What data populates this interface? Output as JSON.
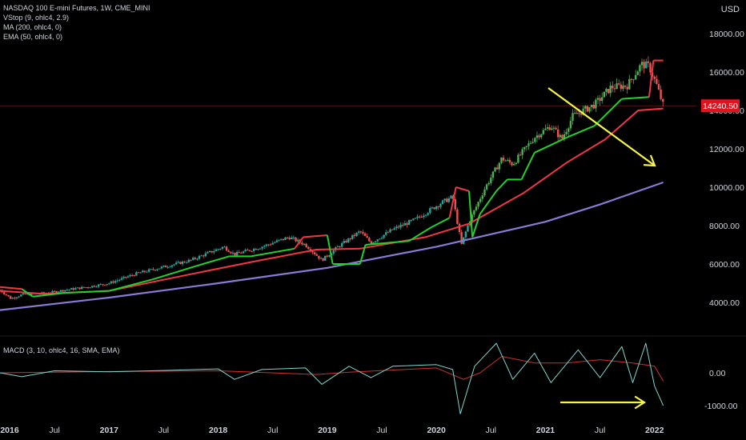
{
  "header": {
    "symbol": "NASDAQ 100 E-mini Futures, 1W, CME_MINI",
    "indicators": [
      "VStop (9, ohlc4, 2.9)",
      "MA (200, ohlc4, 0)",
      "EMA (50, ohlc4, 0)"
    ],
    "currency": "USD"
  },
  "macd_label": "MACD (3, 10, ohlc4, 16, SMA, EMA)",
  "colors": {
    "background": "#000000",
    "candle_up": "#26a69a",
    "candle_bright_up": "#4caf50",
    "candle_down": "#ef5350",
    "vstop": "#f23645",
    "vstop_green": "#22d12b",
    "ema50": "#f23645",
    "ma200": "#8a7ad6",
    "macd": "#7fd6d0",
    "signal": "#d03030",
    "arrow": "#f5f542",
    "price_badge": "#e0141e"
  },
  "chart_data": {
    "type": "candlestick",
    "x_ticks": [
      "2016",
      "Jul",
      "2017",
      "Jul",
      "2018",
      "Jul",
      "2019",
      "Jul",
      "2020",
      "Jul",
      "2021",
      "Jul",
      "2022"
    ],
    "y_ticks": [
      "4000.00",
      "6000.00",
      "8000.00",
      "10000.00",
      "12000.00",
      "14000.00",
      "16000.00",
      "18000.00"
    ],
    "last_price": "14240.50",
    "ylim": [
      3000,
      18000
    ],
    "macd_ticks": [
      "0.00",
      "-1000.00"
    ],
    "price_path": [
      [
        2016.0,
        4650
      ],
      [
        2016.1,
        4200
      ],
      [
        2016.2,
        4400
      ],
      [
        2016.45,
        4500
      ],
      [
        2016.6,
        4650
      ],
      [
        2016.8,
        4800
      ],
      [
        2017.0,
        5000
      ],
      [
        2017.25,
        5500
      ],
      [
        2017.5,
        5850
      ],
      [
        2017.75,
        6200
      ],
      [
        2018.05,
        6900
      ],
      [
        2018.15,
        6500
      ],
      [
        2018.4,
        6900
      ],
      [
        2018.65,
        7400
      ],
      [
        2018.8,
        7000
      ],
      [
        2018.95,
        6200
      ],
      [
        2019.1,
        6900
      ],
      [
        2019.3,
        7700
      ],
      [
        2019.4,
        7100
      ],
      [
        2019.6,
        7800
      ],
      [
        2019.8,
        8300
      ],
      [
        2020.05,
        9200
      ],
      [
        2020.15,
        9500
      ],
      [
        2020.23,
        7000
      ],
      [
        2020.3,
        8200
      ],
      [
        2020.45,
        10000
      ],
      [
        2020.6,
        11500
      ],
      [
        2020.7,
        11200
      ],
      [
        2020.9,
        12600
      ],
      [
        2021.05,
        13200
      ],
      [
        2021.15,
        12500
      ],
      [
        2021.25,
        13700
      ],
      [
        2021.45,
        14300
      ],
      [
        2021.6,
        15200
      ],
      [
        2021.75,
        15300
      ],
      [
        2021.88,
        16400
      ],
      [
        2021.95,
        16300
      ],
      [
        2022.02,
        15300
      ],
      [
        2022.08,
        14240
      ]
    ],
    "ma200_path": [
      [
        2016.0,
        3600
      ],
      [
        2017.0,
        4250
      ],
      [
        2018.0,
        5000
      ],
      [
        2019.0,
        5800
      ],
      [
        2020.0,
        6900
      ],
      [
        2021.0,
        8200
      ],
      [
        2021.5,
        9100
      ],
      [
        2022.08,
        10250
      ]
    ],
    "ema50_path": [
      [
        2016.0,
        4600
      ],
      [
        2016.4,
        4450
      ],
      [
        2017.0,
        4600
      ],
      [
        2017.6,
        5300
      ],
      [
        2018.3,
        6100
      ],
      [
        2018.9,
        6750
      ],
      [
        2019.3,
        6800
      ],
      [
        2019.9,
        7400
      ],
      [
        2020.3,
        8100
      ],
      [
        2020.8,
        9700
      ],
      [
        2021.2,
        11300
      ],
      [
        2021.55,
        12500
      ],
      [
        2021.85,
        14000
      ],
      [
        2022.08,
        14100
      ]
    ],
    "vstop_path": [
      [
        2016.0,
        4800,
        "red"
      ],
      [
        2016.2,
        4700,
        "red"
      ],
      [
        2016.3,
        4300,
        "green"
      ],
      [
        2016.6,
        4500,
        "green"
      ],
      [
        2017.0,
        4600,
        "green"
      ],
      [
        2017.4,
        5200,
        "green"
      ],
      [
        2017.8,
        5900,
        "green"
      ],
      [
        2018.1,
        6400,
        "green"
      ],
      [
        2018.3,
        6400,
        "green"
      ],
      [
        2018.7,
        6800,
        "green"
      ],
      [
        2018.78,
        7400,
        "red"
      ],
      [
        2019.0,
        7500,
        "red"
      ],
      [
        2019.05,
        6000,
        "green"
      ],
      [
        2019.3,
        6000,
        "green"
      ],
      [
        2019.35,
        7000,
        "green"
      ],
      [
        2019.75,
        7200,
        "green"
      ],
      [
        2019.95,
        7900,
        "green"
      ],
      [
        2020.12,
        8400,
        "green"
      ],
      [
        2020.18,
        10000,
        "red"
      ],
      [
        2020.3,
        9800,
        "red"
      ],
      [
        2020.33,
        7400,
        "green"
      ],
      [
        2020.4,
        8600,
        "green"
      ],
      [
        2020.55,
        9800,
        "green"
      ],
      [
        2020.65,
        10400,
        "green"
      ],
      [
        2020.78,
        10400,
        "green"
      ],
      [
        2020.9,
        11800,
        "green"
      ],
      [
        2021.2,
        12600,
        "green"
      ],
      [
        2021.45,
        13200,
        "green"
      ],
      [
        2021.7,
        14600,
        "green"
      ],
      [
        2021.95,
        14700,
        "green"
      ],
      [
        2021.99,
        16600,
        "red"
      ],
      [
        2022.08,
        16600,
        "red"
      ]
    ],
    "macd_path": [
      [
        2016.0,
        0
      ],
      [
        2016.2,
        -120
      ],
      [
        2016.5,
        60
      ],
      [
        2017.0,
        30
      ],
      [
        2017.5,
        70
      ],
      [
        2018.0,
        120
      ],
      [
        2018.15,
        -200
      ],
      [
        2018.4,
        100
      ],
      [
        2018.8,
        150
      ],
      [
        2018.95,
        -350
      ],
      [
        2019.2,
        200
      ],
      [
        2019.4,
        -150
      ],
      [
        2019.6,
        200
      ],
      [
        2020.0,
        250
      ],
      [
        2020.15,
        100
      ],
      [
        2020.22,
        -1250
      ],
      [
        2020.35,
        200
      ],
      [
        2020.55,
        900
      ],
      [
        2020.7,
        -200
      ],
      [
        2020.9,
        600
      ],
      [
        2021.05,
        -300
      ],
      [
        2021.3,
        700
      ],
      [
        2021.5,
        -150
      ],
      [
        2021.7,
        800
      ],
      [
        2021.8,
        -300
      ],
      [
        2021.92,
        900
      ],
      [
        2022.0,
        -400
      ],
      [
        2022.08,
        -1000
      ]
    ],
    "signal_path": [
      [
        2016.0,
        0
      ],
      [
        2016.5,
        20
      ],
      [
        2017.0,
        40
      ],
      [
        2018.0,
        60
      ],
      [
        2018.9,
        -50
      ],
      [
        2019.2,
        20
      ],
      [
        2020.0,
        150
      ],
      [
        2020.25,
        -200
      ],
      [
        2020.4,
        0
      ],
      [
        2020.6,
        500
      ],
      [
        2020.9,
        300
      ],
      [
        2021.2,
        300
      ],
      [
        2021.5,
        400
      ],
      [
        2021.8,
        300
      ],
      [
        2022.0,
        200
      ],
      [
        2022.08,
        -250
      ]
    ]
  }
}
